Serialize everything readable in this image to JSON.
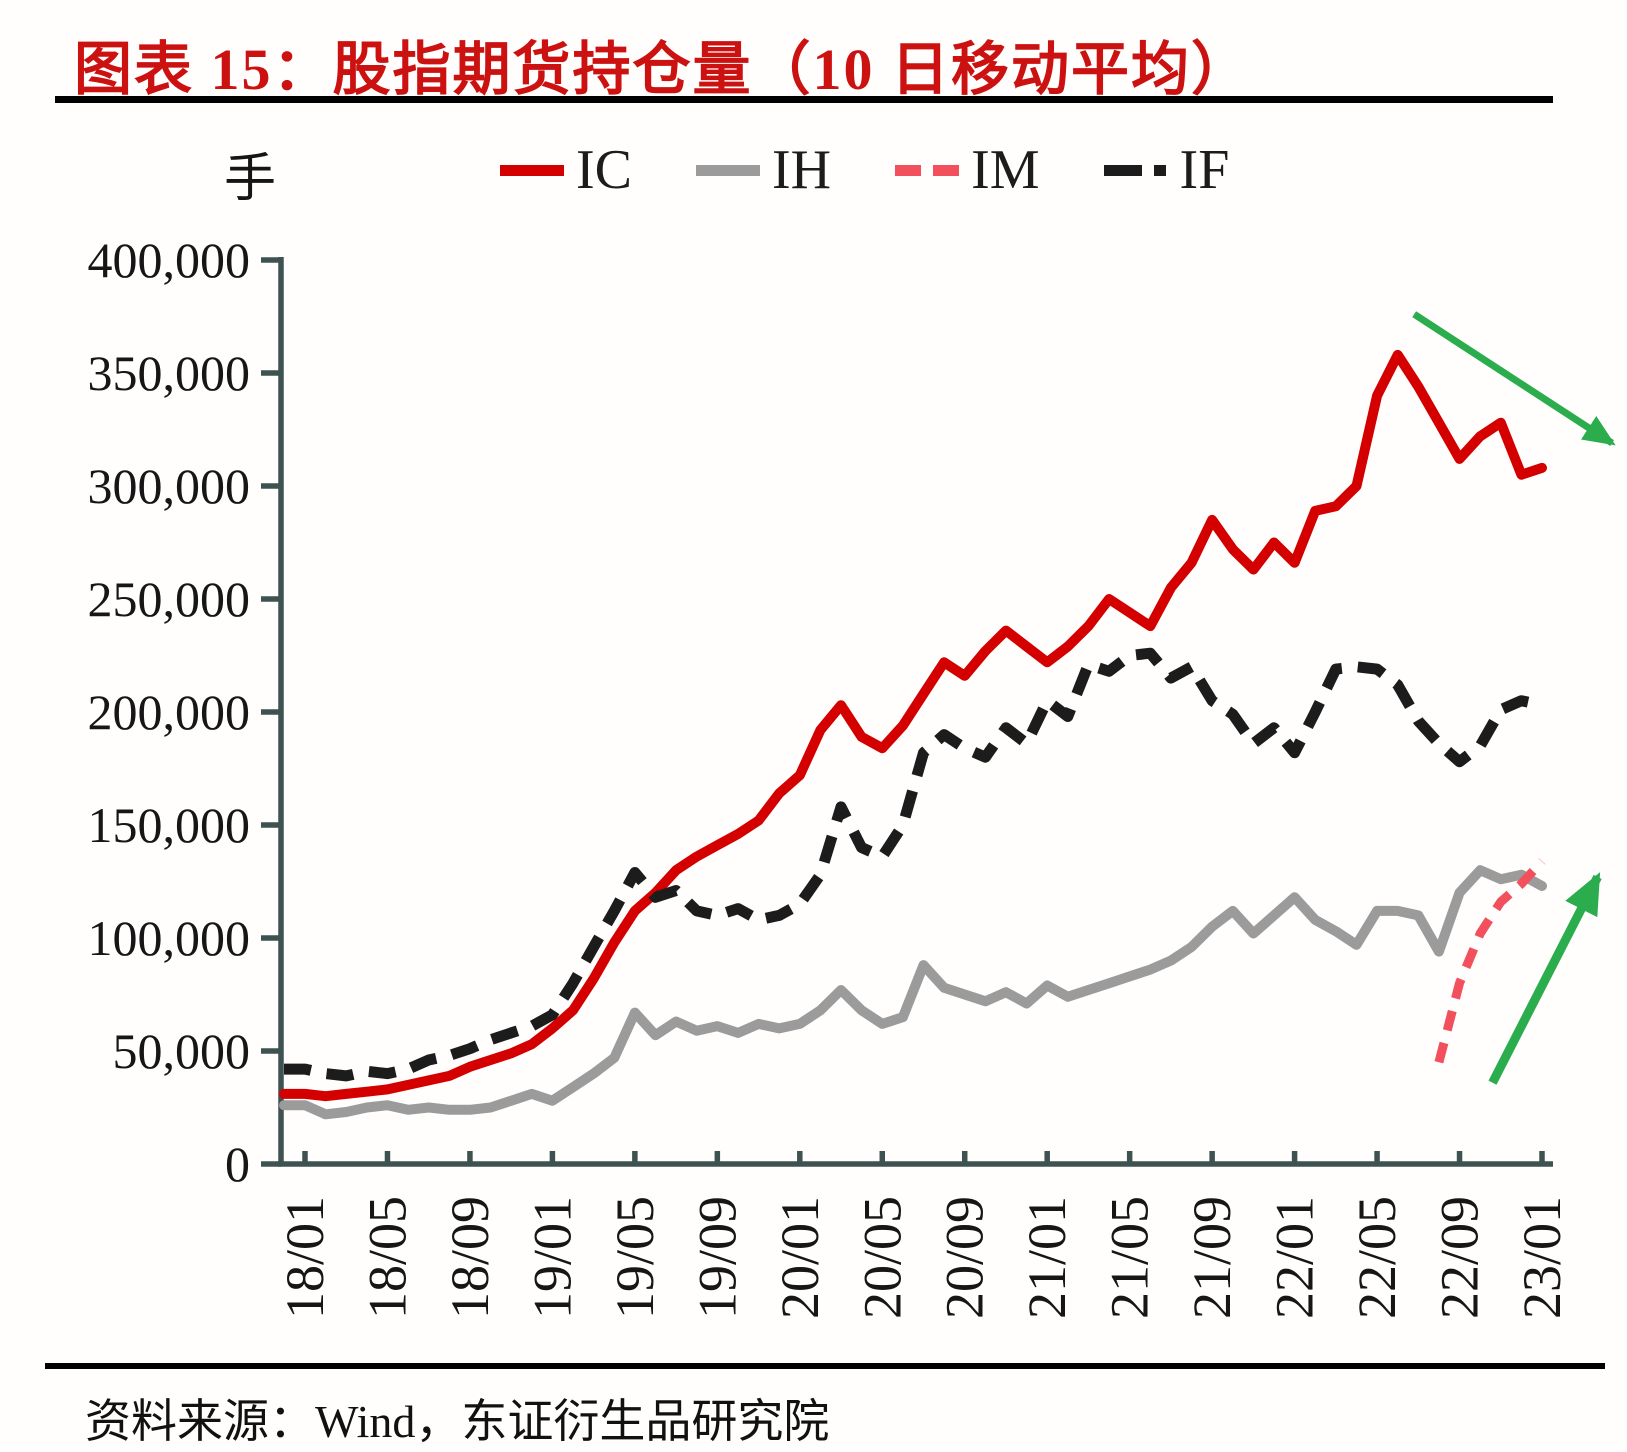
{
  "title": {
    "text": "图表 15：股指期货持仓量（10 日移动平均）"
  },
  "source": {
    "text": "资料来源：Wind，东证衍生品研究院"
  },
  "legend": {
    "unit_label": "手",
    "items": [
      {
        "label": "IC",
        "color": "#D40000",
        "style": "solid"
      },
      {
        "label": "IH",
        "color": "#9B9B9B",
        "style": "solid"
      },
      {
        "label": "IM",
        "color": "#F2505C",
        "style": "dashed"
      },
      {
        "label": "IF",
        "color": "#1C1C1C",
        "style": "dash-dot"
      }
    ]
  },
  "chart_data": {
    "type": "line",
    "title": "股指期货持仓量（10日移动平均）",
    "ylabel": "手",
    "ylim": [
      0,
      400000
    ],
    "grid": false,
    "legend_position": "top",
    "axis_color": "#3E5252",
    "annotation_color": "#2BAC4D",
    "y_axis": {
      "unit": "手",
      "tick_step": 50000,
      "ticks": [
        {
          "value": 400000,
          "label": "400,000"
        },
        {
          "value": 350000,
          "label": "350,000"
        },
        {
          "value": 300000,
          "label": "300,000"
        },
        {
          "value": 250000,
          "label": "250,000"
        },
        {
          "value": 200000,
          "label": "200,000"
        },
        {
          "value": 150000,
          "label": "150,000"
        },
        {
          "value": 100000,
          "label": "100,000"
        },
        {
          "value": 50000,
          "label": "50,000"
        },
        {
          "value": 0,
          "label": "0"
        }
      ]
    },
    "x_axis": {
      "tick_interval_months": 4,
      "tick_labels": [
        "18/01",
        "18/05",
        "18/09",
        "19/01",
        "19/05",
        "19/09",
        "20/01",
        "20/05",
        "20/09",
        "21/01",
        "21/05",
        "21/09",
        "22/01",
        "22/05",
        "22/09",
        "23/01"
      ]
    },
    "x": [
      "18/01",
      "18/02",
      "18/03",
      "18/04",
      "18/05",
      "18/06",
      "18/07",
      "18/08",
      "18/09",
      "18/10",
      "18/11",
      "18/12",
      "19/01",
      "19/02",
      "19/03",
      "19/04",
      "19/05",
      "19/06",
      "19/07",
      "19/08",
      "19/09",
      "19/10",
      "19/11",
      "19/12",
      "20/01",
      "20/02",
      "20/03",
      "20/04",
      "20/05",
      "20/06",
      "20/07",
      "20/08",
      "20/09",
      "20/10",
      "20/11",
      "20/12",
      "21/01",
      "21/02",
      "21/03",
      "21/04",
      "21/05",
      "21/06",
      "21/07",
      "21/08",
      "21/09",
      "21/10",
      "21/11",
      "21/12",
      "22/01",
      "22/02",
      "22/03",
      "22/04",
      "22/05",
      "22/06",
      "22/07",
      "22/08",
      "22/09",
      "22/10",
      "22/11",
      "22/12",
      "23/01"
    ],
    "series": [
      {
        "name": "IC",
        "color": "#D40000",
        "style": "solid",
        "stroke_width": 10,
        "values": [
          31000,
          30000,
          31000,
          32000,
          33000,
          35000,
          37000,
          39000,
          43000,
          46000,
          49000,
          53000,
          60000,
          68000,
          82000,
          98000,
          112000,
          120000,
          130000,
          136000,
          141000,
          146000,
          152000,
          164000,
          172000,
          192000,
          203000,
          189000,
          184000,
          194000,
          208000,
          222000,
          216000,
          227000,
          236000,
          229000,
          222000,
          229000,
          238000,
          250000,
          244000,
          238000,
          255000,
          266000,
          285000,
          272000,
          263000,
          275000,
          266000,
          289000,
          291000,
          300000,
          340000,
          358000,
          344000,
          328000,
          312000,
          322000,
          328000,
          305000,
          308000
        ]
      },
      {
        "name": "IH",
        "color": "#9B9B9B",
        "style": "solid",
        "stroke_width": 10,
        "values": [
          26000,
          22000,
          23000,
          25000,
          26000,
          24000,
          25000,
          24000,
          24000,
          25000,
          28000,
          31000,
          28000,
          34000,
          40000,
          47000,
          67000,
          57000,
          63000,
          59000,
          61000,
          58000,
          62000,
          60000,
          62000,
          68000,
          77000,
          68000,
          62000,
          65000,
          88000,
          78000,
          75000,
          72000,
          76000,
          71000,
          79000,
          74000,
          77000,
          80000,
          83000,
          86000,
          90000,
          96000,
          105000,
          112000,
          102000,
          110000,
          118000,
          108000,
          103000,
          97000,
          112000,
          112000,
          110000,
          94000,
          120000,
          130000,
          126000,
          128000,
          123000
        ]
      },
      {
        "name": "IM",
        "color": "#F2505C",
        "style": "dashed",
        "stroke_width": 9,
        "values": [
          null,
          null,
          null,
          null,
          null,
          null,
          null,
          null,
          null,
          null,
          null,
          null,
          null,
          null,
          null,
          null,
          null,
          null,
          null,
          null,
          null,
          null,
          null,
          null,
          null,
          null,
          null,
          null,
          null,
          null,
          null,
          null,
          null,
          null,
          null,
          null,
          null,
          null,
          null,
          null,
          null,
          null,
          null,
          null,
          null,
          null,
          null,
          null,
          null,
          null,
          null,
          null,
          null,
          null,
          null,
          45000,
          80000,
          102000,
          116000,
          124000,
          134000
        ]
      },
      {
        "name": "IF",
        "color": "#1C1C1C",
        "style": "dash-dot",
        "stroke_width": 11,
        "values": [
          42000,
          40000,
          39000,
          41000,
          40000,
          42000,
          46000,
          48000,
          51000,
          55000,
          58000,
          61000,
          66000,
          80000,
          96000,
          112000,
          129000,
          118000,
          121000,
          112000,
          110000,
          113000,
          108000,
          110000,
          115000,
          128000,
          158000,
          140000,
          136000,
          150000,
          182000,
          190000,
          184000,
          180000,
          193000,
          186000,
          205000,
          198000,
          221000,
          218000,
          225000,
          226000,
          215000,
          220000,
          205000,
          199000,
          186000,
          193000,
          182000,
          200000,
          219000,
          220000,
          219000,
          212000,
          196000,
          186000,
          178000,
          185000,
          201000,
          205000,
          203000
        ]
      }
    ],
    "annotations": [
      {
        "name": "trend-arrow-down",
        "direction": "down-right",
        "series": "IC",
        "from_month_index": 53.8,
        "from_value": 376000,
        "to_month_index": 63.4,
        "to_value": 319000,
        "stroke_width": 7
      },
      {
        "name": "trend-arrow-up",
        "direction": "up-right",
        "series": "IM",
        "from_month_index": 57.6,
        "from_value": 36000,
        "to_month_index": 62.7,
        "to_value": 127000,
        "stroke_width": 9
      }
    ]
  }
}
